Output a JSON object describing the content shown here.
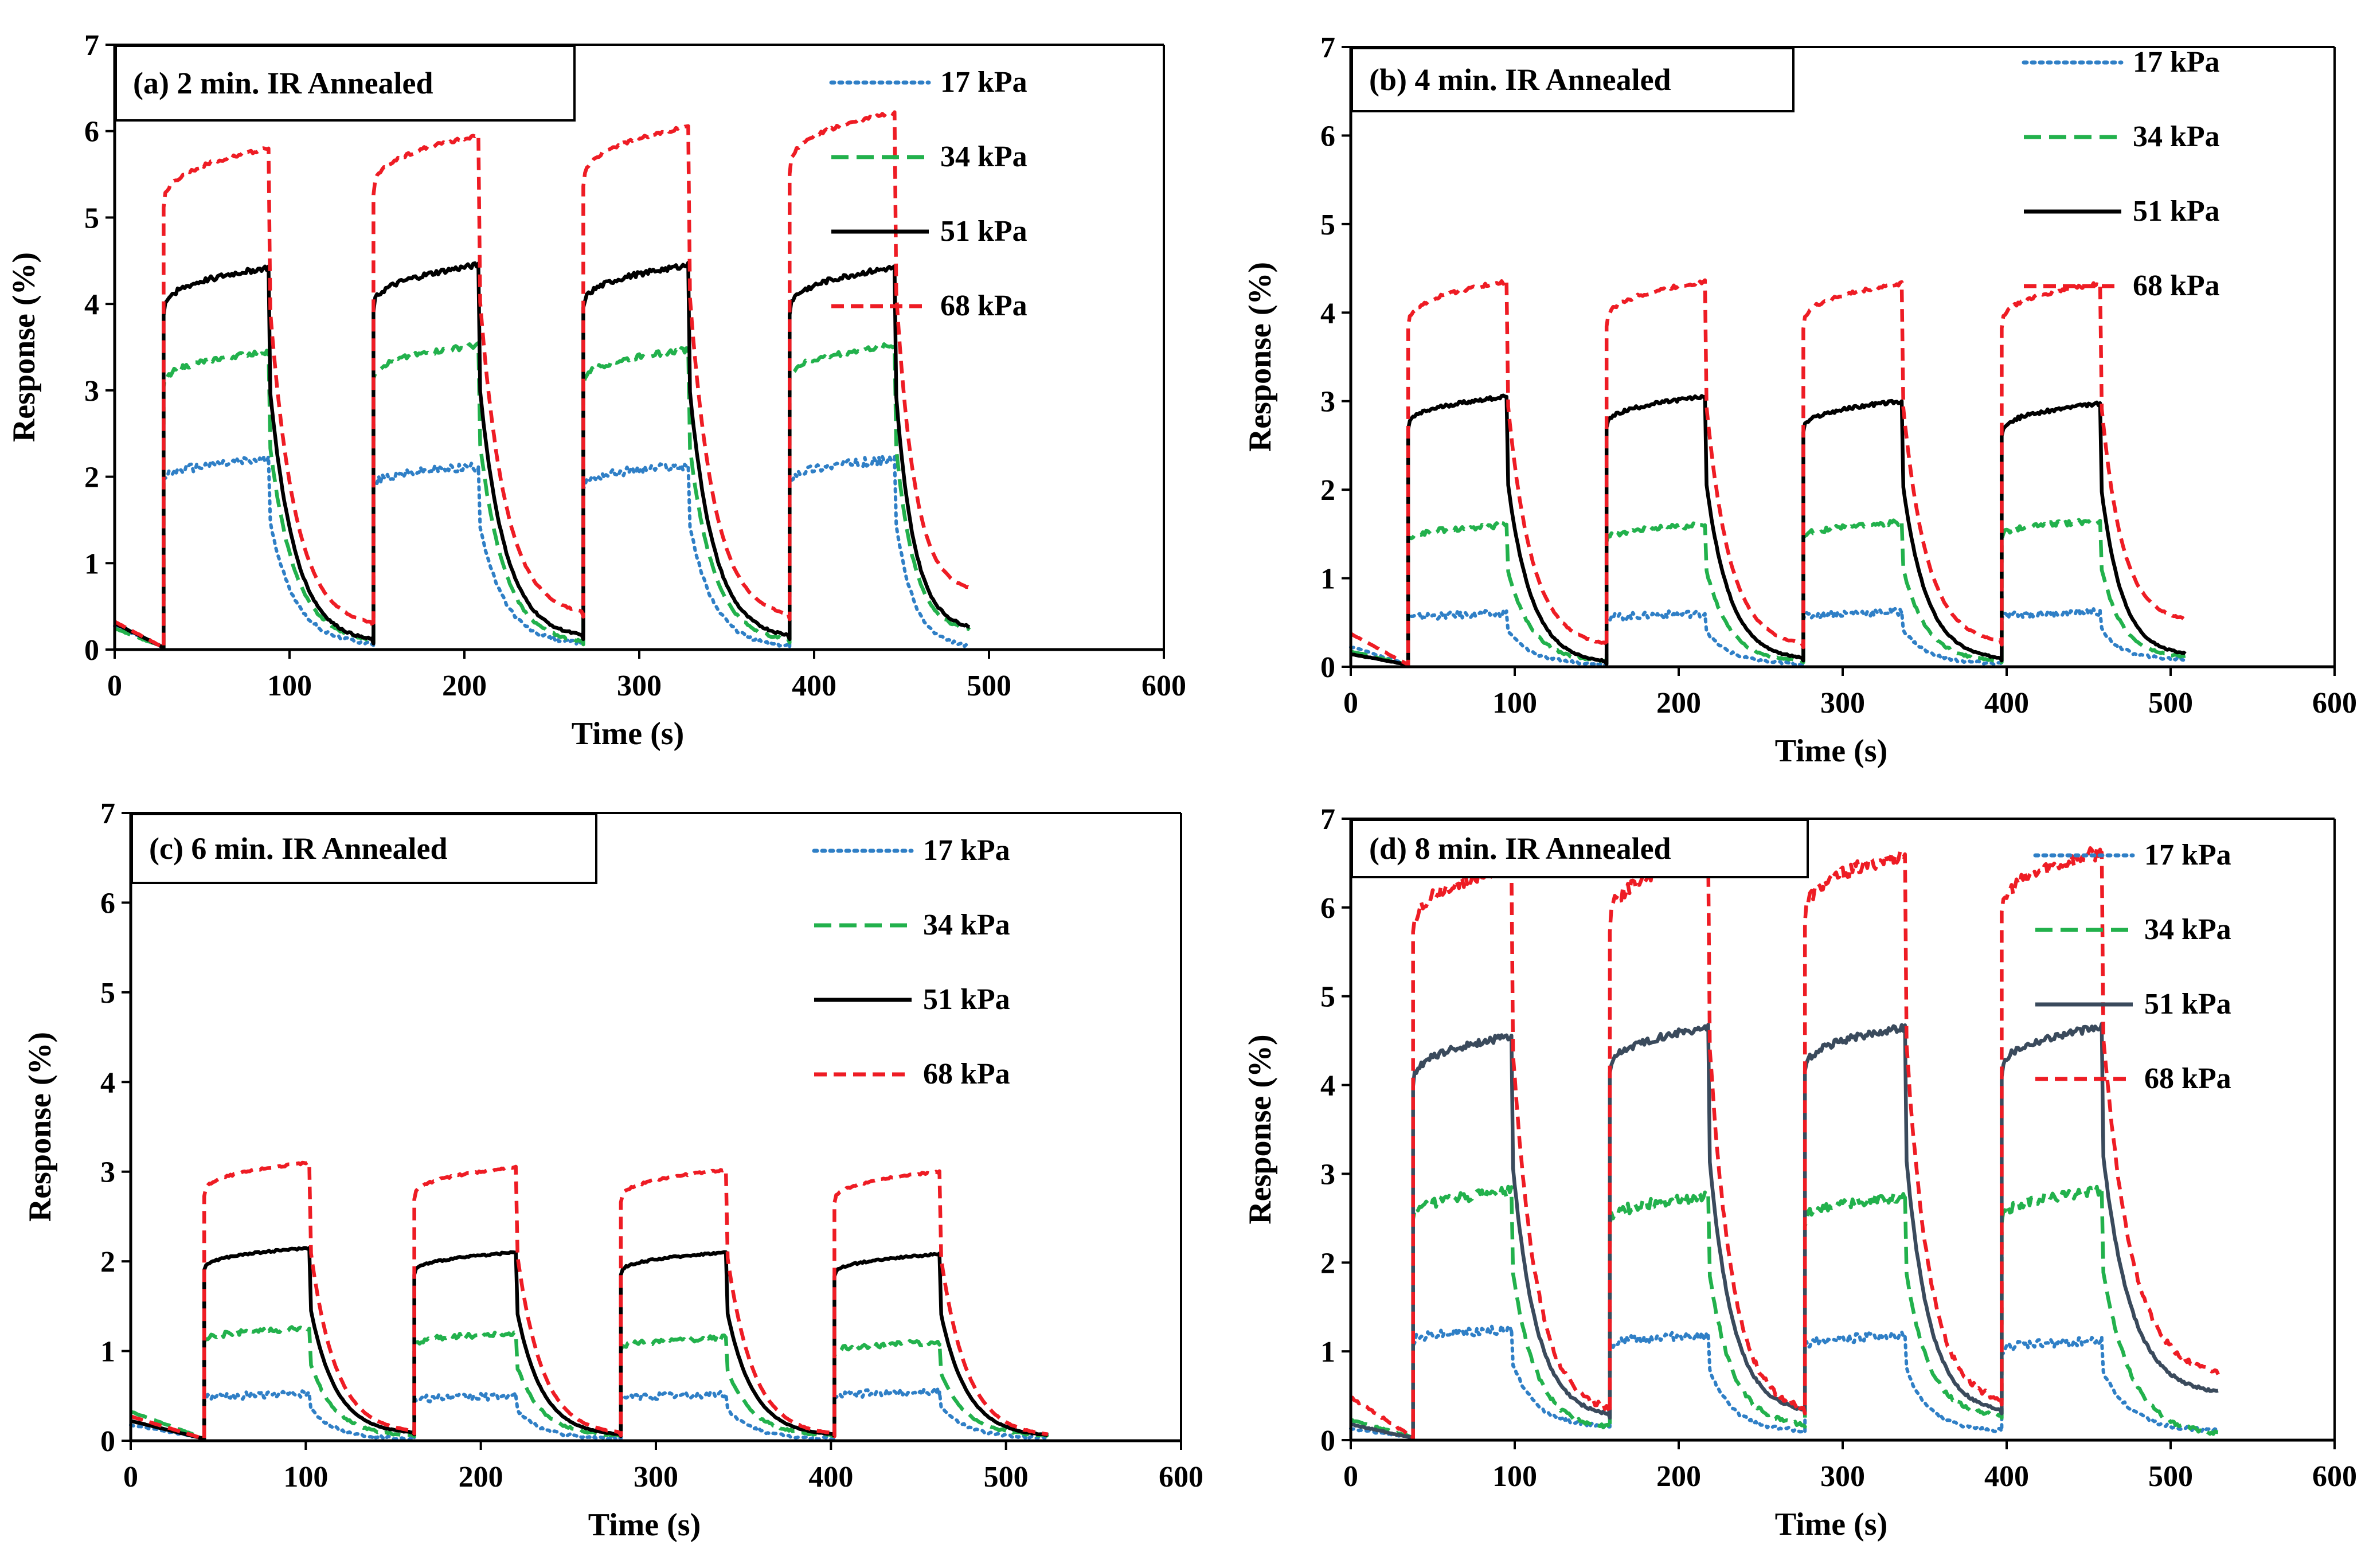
{
  "colors": {
    "17kPa": "#2f7fc6",
    "34kPa": "#22b14c",
    "51kPa": "#000000",
    "51kPa_d": "#3a4a5c",
    "68kPa": "#ee1c24"
  },
  "chart_data": [
    {
      "type": "line",
      "title": "(a)  2 min. IR Annealed",
      "xlabel": "Time (s)",
      "ylabel": "Response (%)",
      "xlim": [
        0,
        600
      ],
      "ylim": [
        0,
        7
      ],
      "xticks": [
        0,
        100,
        200,
        300,
        400,
        500,
        600
      ],
      "yticks": [
        0,
        1,
        2,
        3,
        4,
        5,
        6,
        7
      ],
      "on_times": [
        28,
        148,
        268,
        386
      ],
      "off_times": [
        88,
        208,
        328,
        446
      ],
      "end_time": 490,
      "series": [
        {
          "name": "17 kPa",
          "color": "#2f7fc6",
          "dash": "dot",
          "start": 0.25,
          "plateau": [
            2.2,
            2.12,
            2.13,
            2.2
          ],
          "base": [
            0.05,
            0.05,
            0.02,
            0.02
          ],
          "noise": 0.05
        },
        {
          "name": "34 kPa",
          "color": "#22b14c",
          "dash": "dash",
          "start": 0.22,
          "plateau": [
            3.45,
            3.52,
            3.47,
            3.52
          ],
          "base": [
            0.08,
            0.06,
            0.08,
            0.2
          ],
          "noise": 0.03
        },
        {
          "name": "51 kPa",
          "color": "#000000",
          "dash": "solid",
          "start": 0.28,
          "plateau": [
            4.42,
            4.45,
            4.45,
            4.42
          ],
          "base": [
            0.07,
            0.12,
            0.12,
            0.22
          ],
          "noise": 0.03
        },
        {
          "name": "68 kPa",
          "color": "#ee1c24",
          "dash": "dash2",
          "start": 0.3,
          "plateau": [
            5.8,
            5.95,
            6.05,
            6.22
          ],
          "base": [
            0.25,
            0.38,
            0.35,
            0.65
          ],
          "noise": 0.02
        }
      ]
    },
    {
      "type": "line",
      "title": "(b) 4 min. IR Annealed",
      "xlabel": "Time (s)",
      "ylabel": "Response (%)",
      "xlim": [
        0,
        600
      ],
      "ylim": [
        0,
        7
      ],
      "xticks": [
        0,
        100,
        200,
        300,
        400,
        500,
        600
      ],
      "yticks": [
        0,
        1,
        2,
        3,
        4,
        5,
        6,
        7
      ],
      "on_times": [
        35,
        156,
        276,
        397
      ],
      "off_times": [
        95,
        216,
        336,
        457
      ],
      "end_time": 510,
      "series": [
        {
          "name": "17 kPa",
          "color": "#2f7fc6",
          "dash": "dot",
          "start": 0.2,
          "plateau": [
            0.6,
            0.6,
            0.62,
            0.62
          ],
          "base": [
            0.03,
            0.03,
            0.03,
            0.08
          ],
          "noise": 0.04
        },
        {
          "name": "34 kPa",
          "color": "#22b14c",
          "dash": "dash",
          "start": 0.15,
          "plateau": [
            1.6,
            1.6,
            1.63,
            1.65
          ],
          "base": [
            0.05,
            0.05,
            0.05,
            0.1
          ],
          "noise": 0.03
        },
        {
          "name": "51 kPa",
          "color": "#000000",
          "dash": "solid",
          "start": 0.12,
          "plateau": [
            3.05,
            3.05,
            3.0,
            2.97
          ],
          "base": [
            0.03,
            0.07,
            0.07,
            0.12
          ],
          "noise": 0.02
        },
        {
          "name": "68 kPa",
          "color": "#ee1c24",
          "dash": "dash2",
          "start": 0.35,
          "plateau": [
            4.35,
            4.35,
            4.33,
            4.33
          ],
          "base": [
            0.22,
            0.22,
            0.25,
            0.5
          ],
          "noise": 0.02
        }
      ]
    },
    {
      "type": "line",
      "title": "(c) 6 min. IR Annealed",
      "xlabel": "Time (s)",
      "ylabel": "Response (%)",
      "xlim": [
        0,
        600
      ],
      "ylim": [
        0,
        7
      ],
      "xticks": [
        0,
        100,
        200,
        300,
        400,
        500,
        600
      ],
      "yticks": [
        0,
        1,
        2,
        3,
        4,
        5,
        6,
        7
      ],
      "on_times": [
        42,
        162,
        280,
        402
      ],
      "off_times": [
        102,
        220,
        340,
        462
      ],
      "end_time": 525,
      "series": [
        {
          "name": "17 kPa",
          "color": "#2f7fc6",
          "dash": "dot",
          "start": 0.15,
          "plateau": [
            0.52,
            0.5,
            0.52,
            0.55
          ],
          "base": [
            0.02,
            0.02,
            0.02,
            0.03
          ],
          "noise": 0.04
        },
        {
          "name": "34 kPa",
          "color": "#22b14c",
          "dash": "dash",
          "start": 0.3,
          "plateau": [
            1.25,
            1.2,
            1.15,
            1.1
          ],
          "base": [
            0.05,
            0.05,
            0.05,
            0.05
          ],
          "noise": 0.03
        },
        {
          "name": "51 kPa",
          "color": "#000000",
          "dash": "solid",
          "start": 0.2,
          "plateau": [
            2.15,
            2.1,
            2.1,
            2.08
          ],
          "base": [
            0.07,
            0.05,
            0.05,
            0.04
          ],
          "noise": 0.01
        },
        {
          "name": "68 kPa",
          "color": "#ee1c24",
          "dash": "dash2",
          "start": 0.25,
          "plateau": [
            3.1,
            3.05,
            3.02,
            3.0
          ],
          "base": [
            0.08,
            0.06,
            0.05,
            0.04
          ],
          "noise": 0.01
        }
      ]
    },
    {
      "type": "line",
      "title": "(d) 8 min. IR  Annealed",
      "xlabel": "Time (s)",
      "ylabel": "Response (%)",
      "xlim": [
        0,
        600
      ],
      "ylim": [
        0,
        7
      ],
      "xticks": [
        0,
        100,
        200,
        300,
        400,
        500,
        600
      ],
      "yticks": [
        0,
        1,
        2,
        3,
        4,
        5,
        6,
        7
      ],
      "on_times": [
        38,
        158,
        277,
        397
      ],
      "off_times": [
        98,
        218,
        338,
        458
      ],
      "end_time": 530,
      "series": [
        {
          "name": "17 kPa",
          "color": "#2f7fc6",
          "dash": "dot",
          "start": 0.1,
          "plateau": [
            1.25,
            1.18,
            1.18,
            1.12
          ],
          "base": [
            0.15,
            0.1,
            0.1,
            0.1
          ],
          "noise": 0.05
        },
        {
          "name": "34 kPa",
          "color": "#22b14c",
          "dash": "dash",
          "start": 0.2,
          "plateau": [
            2.8,
            2.75,
            2.75,
            2.8
          ],
          "base": [
            0.12,
            0.15,
            0.25,
            0.05
          ],
          "noise": 0.06
        },
        {
          "name": "51 kPa",
          "color": "#3a4a5c",
          "dash": "solid",
          "start": 0.15,
          "plateau": [
            4.55,
            4.65,
            4.65,
            4.65
          ],
          "base": [
            0.25,
            0.3,
            0.3,
            0.5
          ],
          "noise": 0.04
        },
        {
          "name": "68 kPa",
          "color": "#ee1c24",
          "dash": "dash2",
          "start": 0.45,
          "plateau": [
            6.45,
            6.55,
            6.6,
            6.62
          ],
          "base": [
            0.3,
            0.3,
            0.4,
            0.7
          ],
          "noise": 0.08
        }
      ]
    }
  ]
}
